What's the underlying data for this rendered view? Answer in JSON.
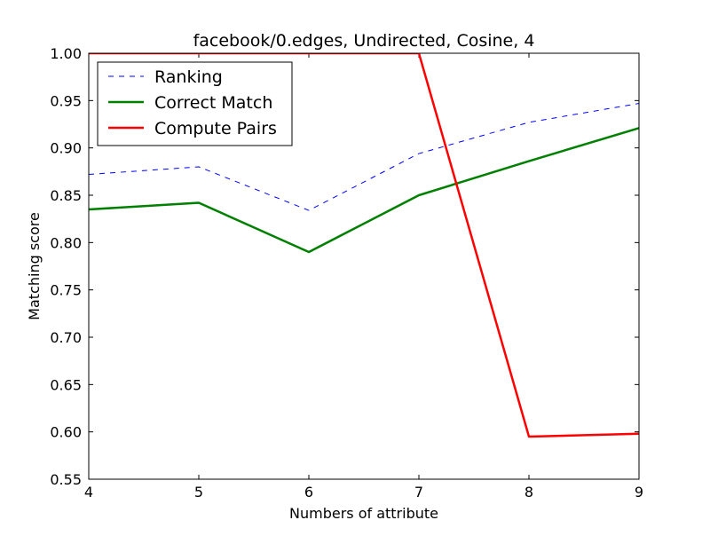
{
  "chart_data": {
    "type": "line",
    "title": "facebook/0.edges, Undirected, Cosine, 4",
    "xlabel": "Numbers of attribute",
    "ylabel": "Matching score",
    "x": [
      4,
      5,
      6,
      7,
      8,
      9
    ],
    "xlim": [
      4,
      9
    ],
    "ylim": [
      0.55,
      1.0
    ],
    "xticks": [
      "4",
      "5",
      "6",
      "7",
      "8",
      "9"
    ],
    "yticks": [
      "0.55",
      "0.60",
      "0.65",
      "0.70",
      "0.75",
      "0.80",
      "0.85",
      "0.90",
      "0.95",
      "1.00"
    ],
    "grid": false,
    "legend_position": "top-left",
    "series": [
      {
        "name": "Ranking",
        "values": [
          0.872,
          0.88,
          0.834,
          0.894,
          0.927,
          0.947
        ],
        "color": "#0000ff",
        "style": "dashed"
      },
      {
        "name": "Correct Match",
        "values": [
          0.835,
          0.842,
          0.79,
          0.85,
          0.886,
          0.921
        ],
        "color": "#008000",
        "style": "solid"
      },
      {
        "name": "Compute Pairs",
        "values": [
          1.0,
          1.0,
          1.0,
          1.0,
          0.595,
          0.598
        ],
        "color": "#ff0000",
        "style": "solid"
      }
    ]
  }
}
